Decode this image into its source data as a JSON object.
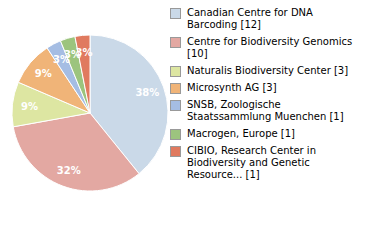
{
  "chart_data": {
    "type": "pie",
    "categories": [
      "Canadian Centre for DNA Barcoding [12]",
      "Centre for Biodiversity Genomics [10]",
      "Naturalis Biodiversity Center [3]",
      "Microsynth AG [3]",
      "SNSB, Zoologische Staatssammlung Muenchen [1]",
      "Macrogen, Europe [1]",
      "CIBIO, Research Center in Biodiversity and Genetic Resource... [1]"
    ],
    "values": [
      38,
      32,
      9,
      9,
      3,
      3,
      3
    ],
    "value_labels": [
      "38%",
      "32%",
      "9%",
      "9%",
      "3%",
      "3%",
      "3%"
    ],
    "data_labels": true,
    "colors": [
      "#cad9e8",
      "#e3a8a2",
      "#dde6a2",
      "#f0b478",
      "#a5bde3",
      "#9cc47e",
      "#e07a5f"
    ],
    "legend": "right"
  }
}
